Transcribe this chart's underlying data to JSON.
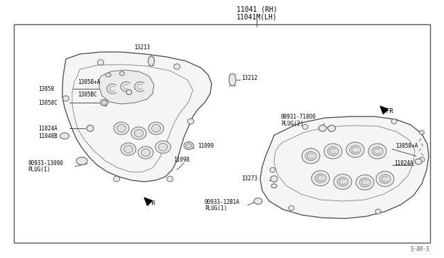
{
  "title_line1": "11041 (RH)",
  "title_line2": "11041M(LH)",
  "diagram_number": "S·00·S",
  "bg_color": "#ffffff",
  "border_color": "#555555",
  "lc": "#333333",
  "lfs": 5.5,
  "tfs": 7.0
}
